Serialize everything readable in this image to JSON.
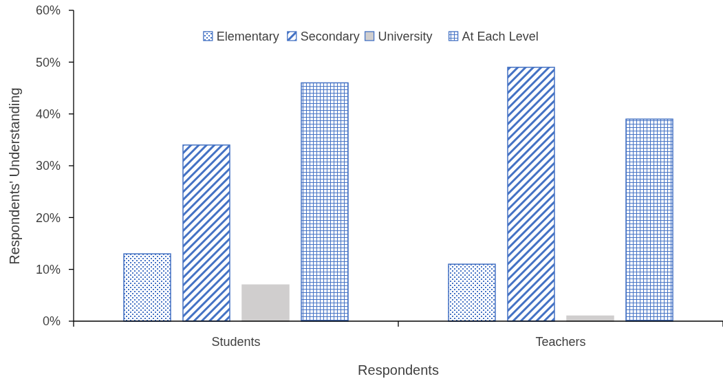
{
  "chart_data": {
    "type": "bar",
    "xlabel": "Respondents",
    "ylabel": "Respondents' Understanding",
    "categories": [
      "Students",
      "Teachers"
    ],
    "series": [
      {
        "name": "Elementary",
        "color": "#4472c4",
        "values": [
          13,
          11
        ]
      },
      {
        "name": "Secondary",
        "color": "#4472c4",
        "values": [
          34,
          49
        ]
      },
      {
        "name": "University",
        "color": "#d0cece",
        "values": [
          7,
          1
        ]
      },
      {
        "name": "At Each Level",
        "color": "#4472c4",
        "values": [
          46,
          39
        ]
      }
    ],
    "ylim": [
      0,
      60
    ],
    "yticks": [
      {
        "value": 0,
        "label": "0%"
      },
      {
        "value": 10,
        "label": "10%"
      },
      {
        "value": 20,
        "label": "20%"
      },
      {
        "value": 30,
        "label": "30%"
      },
      {
        "value": 40,
        "label": "40%"
      },
      {
        "value": 50,
        "label": "50%"
      },
      {
        "value": 60,
        "label": "60%"
      }
    ],
    "grid": false,
    "legend": "top"
  }
}
